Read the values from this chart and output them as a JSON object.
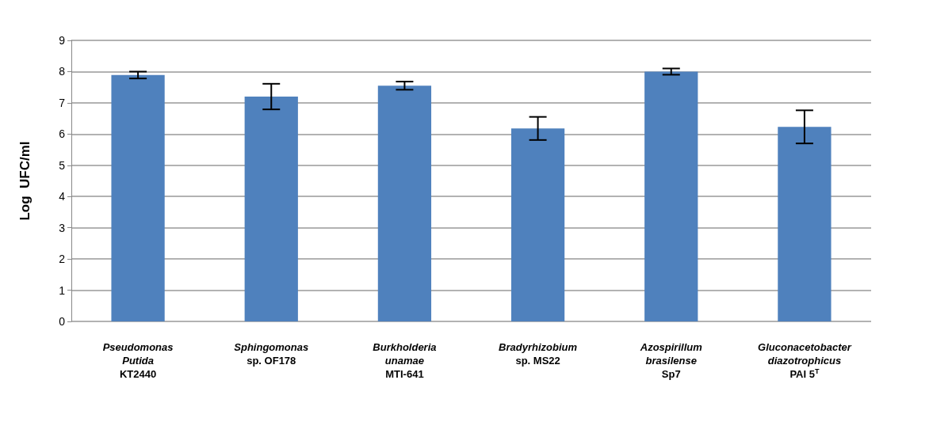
{
  "chart_data": {
    "type": "bar",
    "ylabel": "Log  UFC/ml",
    "categories": [
      "Pseudomonas\nPutida\nKT2440",
      "Sphingomonas\nsp. OF178",
      "Burkholderia\nunamae\nMTI-641",
      "Bradyrhizobium\nsp. MS22",
      "Azospirillum\nbrasilense\nSp7",
      "Gluconacetobacter\ndiazotrophicus\nPAI 5$^{T}$"
    ],
    "values": [
      7.89,
      7.2,
      7.55,
      6.18,
      8.0,
      6.23
    ],
    "errors": [
      0.11,
      0.41,
      0.13,
      0.37,
      0.1,
      0.53
    ],
    "color": "#4f81bd",
    "ylim": [
      0,
      9
    ],
    "yticks": [
      0,
      1,
      2,
      3,
      4,
      5,
      6,
      7,
      8,
      9
    ],
    "grid": "y"
  }
}
